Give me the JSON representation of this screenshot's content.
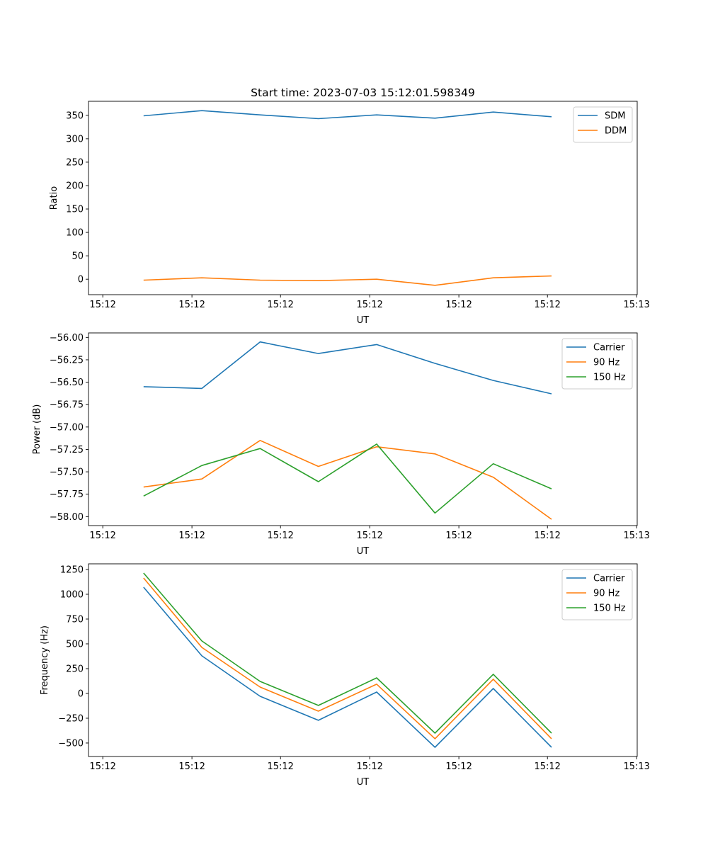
{
  "chart_data": [
    {
      "type": "line",
      "title": "Start time: 2023-07-03 15:12:01.598349",
      "xlabel": "UT",
      "ylabel": "Ratio",
      "x": [
        0,
        1,
        2,
        3,
        4,
        5,
        6,
        7
      ],
      "xlim": [
        -0.945,
        8.47
      ],
      "xticks": [
        -0.7,
        0.83,
        2.35,
        3.88,
        5.41,
        6.93,
        8.46
      ],
      "xtick_labels": [
        "15:12",
        "15:12",
        "15:12",
        "15:12",
        "15:12",
        "15:12",
        "15:13"
      ],
      "ylim": [
        -33,
        380
      ],
      "yticks": [
        0,
        50,
        100,
        150,
        200,
        250,
        300,
        350
      ],
      "ytick_labels": [
        "0",
        "50",
        "100",
        "150",
        "200",
        "250",
        "300",
        "350"
      ],
      "legend": "top-right",
      "series": [
        {
          "name": "SDM",
          "color": "#1f77b4",
          "values": [
            349,
            360,
            351,
            343,
            351,
            344,
            357,
            347
          ]
        },
        {
          "name": "DDM",
          "color": "#ff7f0e",
          "values": [
            -2,
            3,
            -2,
            -3,
            0,
            -13,
            3,
            7
          ]
        }
      ]
    },
    {
      "type": "line",
      "title": "",
      "xlabel": "UT",
      "ylabel": "Power (dB)",
      "x": [
        0,
        1,
        2,
        3,
        4,
        5,
        6,
        7
      ],
      "xlim": [
        -0.945,
        8.47
      ],
      "xticks": [
        -0.7,
        0.83,
        2.35,
        3.88,
        5.41,
        6.93,
        8.46
      ],
      "xtick_labels": [
        "15:12",
        "15:12",
        "15:12",
        "15:12",
        "15:12",
        "15:12",
        "15:13"
      ],
      "ylim": [
        -58.1,
        -55.95
      ],
      "yticks": [
        -58.0,
        -57.75,
        -57.5,
        -57.25,
        -57.0,
        -56.75,
        -56.5,
        -56.25,
        -56.0
      ],
      "ytick_labels": [
        "−58.00",
        "−57.75",
        "−57.50",
        "−57.25",
        "−57.00",
        "−56.75",
        "−56.50",
        "−56.25",
        "−56.00"
      ],
      "legend": "top-right",
      "series": [
        {
          "name": "Carrier",
          "color": "#1f77b4",
          "values": [
            -56.55,
            -56.57,
            -56.05,
            -56.18,
            -56.08,
            -56.29,
            -56.48,
            -56.63
          ]
        },
        {
          "name": "90 Hz",
          "color": "#ff7f0e",
          "values": [
            -57.67,
            -57.58,
            -57.15,
            -57.44,
            -57.22,
            -57.3,
            -57.56,
            -58.03
          ]
        },
        {
          "name": "150 Hz",
          "color": "#2ca02c",
          "values": [
            -57.77,
            -57.43,
            -57.24,
            -57.61,
            -57.19,
            -57.96,
            -57.41,
            -57.69
          ]
        }
      ]
    },
    {
      "type": "line",
      "title": "",
      "xlabel": "UT",
      "ylabel": "Frequency (Hz)",
      "x": [
        0,
        1,
        2,
        3,
        4,
        5,
        6,
        7
      ],
      "xlim": [
        -0.945,
        8.47
      ],
      "xticks": [
        -0.7,
        0.83,
        2.35,
        3.88,
        5.41,
        6.93,
        8.46
      ],
      "xtick_labels": [
        "15:12",
        "15:12",
        "15:12",
        "15:12",
        "15:12",
        "15:12",
        "15:13"
      ],
      "ylim": [
        -636,
        1307
      ],
      "yticks": [
        -500,
        -250,
        0,
        250,
        500,
        750,
        1000,
        1250
      ],
      "ytick_labels": [
        "−500",
        "−250",
        "0",
        "250",
        "500",
        "750",
        "1000",
        "1250"
      ],
      "legend": "top-right",
      "series": [
        {
          "name": "Carrier",
          "color": "#1f77b4",
          "values": [
            1071,
            379,
            -29,
            -271,
            14,
            -543,
            50,
            -543
          ]
        },
        {
          "name": "90 Hz",
          "color": "#ff7f0e",
          "values": [
            1164,
            464,
            64,
            -179,
            93,
            -457,
            143,
            -457
          ]
        },
        {
          "name": "150 Hz",
          "color": "#2ca02c",
          "values": [
            1214,
            529,
            121,
            -121,
            157,
            -400,
            193,
            -400
          ]
        }
      ]
    }
  ]
}
